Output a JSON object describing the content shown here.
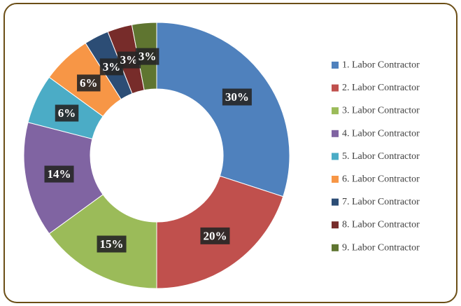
{
  "chart_data": {
    "type": "donut",
    "categories": [
      "1. Labor Contractor",
      "2. Labor Contractor",
      "3. Labor Contractor",
      "4. Labor Contractor",
      "5. Labor Contractor",
      "6. Labor Contractor",
      "7. Labor Contractor",
      "8. Labor Contractor",
      "9. Labor Contractor"
    ],
    "values": [
      30,
      20,
      15,
      14,
      6,
      6,
      3,
      3,
      3
    ],
    "value_labels": [
      "30%",
      "20%",
      "15%",
      "14%",
      "6%",
      "6%",
      "3%",
      "3%",
      "3%"
    ],
    "colors": [
      "#4f81bd",
      "#c0504d",
      "#9bbb59",
      "#8064a2",
      "#4bacc6",
      "#f79646",
      "#2c4d75",
      "#772c2a",
      "#5f7530"
    ],
    "legend": "right"
  }
}
